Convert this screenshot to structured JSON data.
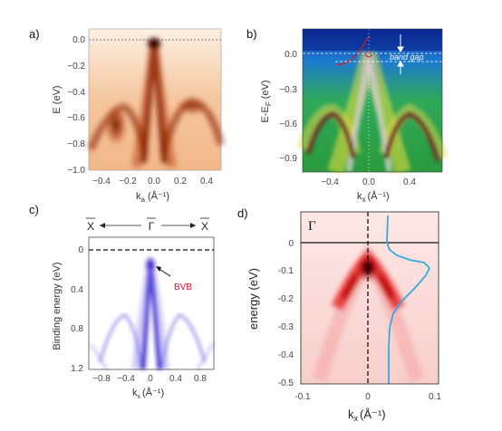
{
  "panels": {
    "a": {
      "letter": "a)",
      "ylabel": "E (eV)",
      "xlabel": "k",
      "xlabel_sub": "a",
      "xlabel_unit": "(Å⁻¹)",
      "yticks": [
        "0.0",
        "−0.2",
        "−0.4",
        "−0.6",
        "−0.8",
        "−1.0"
      ],
      "xticks": [
        "−0.4",
        "−0.2",
        "0.0",
        "0.2",
        "0.4"
      ]
    },
    "b": {
      "letter": "b)",
      "ylabel": "E-E",
      "ylabel_sub": "F",
      "ylabel_unit": "(eV)",
      "xlabel": "k",
      "xlabel_sub": "x",
      "xlabel_unit": "(Å⁻¹)",
      "yticks": [
        "0.0",
        "−0.3",
        "−0.6",
        "−0.9"
      ],
      "xticks": [
        "−0.4",
        "0.0",
        "0.4"
      ],
      "annotation": "band gap"
    },
    "c": {
      "letter": "c)",
      "ylabel": "Binding energy (eV)",
      "xlabel": "k",
      "xlabel_sub": "x",
      "xlabel_unit": "(Å⁻¹)",
      "yticks": [
        "0",
        "0.4",
        "0.8",
        "1.2"
      ],
      "xticks": [
        "−0.8",
        "−0.4",
        "0",
        "0.4",
        "0.8"
      ],
      "top_labels": [
        "X",
        "Γ",
        "X"
      ],
      "annotation": "BVB",
      "annotation_color": "#e0102a"
    },
    "d": {
      "letter": "d)",
      "ylabel": "energy (eV)",
      "xlabel": "k",
      "xlabel_sub": "x",
      "xlabel_unit": "(Å⁻¹)",
      "yticks": [
        "0",
        "-0.1",
        "-0.2",
        "-0.3",
        "-0.4",
        "-0.5"
      ],
      "xticks": [
        "-0.1",
        "0",
        "0.1"
      ],
      "symbol": "Γ",
      "edc_color": "#3aa8e0"
    }
  }
}
